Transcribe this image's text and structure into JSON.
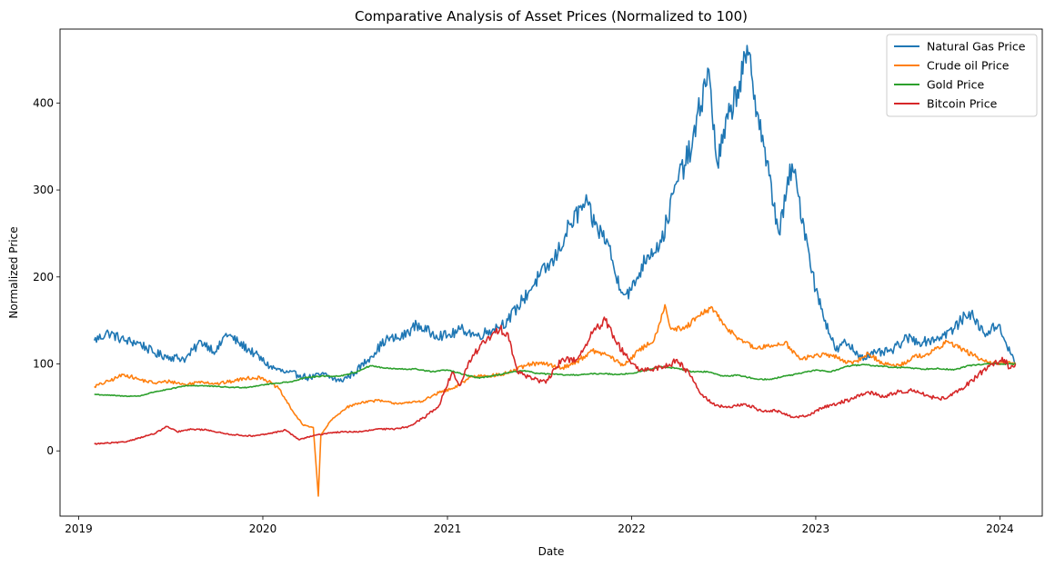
{
  "chart_data": {
    "type": "line",
    "title": "Comparative Analysis of Asset Prices (Normalized to 100)",
    "xlabel": "Date",
    "ylabel": "Normalized Price",
    "x_type": "date",
    "xlim": [
      "2018-11-25",
      "2024-03-25"
    ],
    "ylim": [
      -75,
      485
    ],
    "x_ticks": [
      {
        "label": "2019",
        "date": "2019-01-01"
      },
      {
        "label": "2020",
        "date": "2020-01-01"
      },
      {
        "label": "2021",
        "date": "2021-01-01"
      },
      {
        "label": "2022",
        "date": "2022-01-01"
      },
      {
        "label": "2023",
        "date": "2023-01-01"
      },
      {
        "label": "2024",
        "date": "2024-01-01"
      }
    ],
    "y_ticks": [
      0,
      100,
      200,
      300,
      400
    ],
    "grid": false,
    "legend_position": "top-right",
    "series": [
      {
        "name": "Natural Gas Price",
        "color": "#1f77b4",
        "points": [
          [
            "2019-02-01",
            127
          ],
          [
            "2019-03-01",
            136
          ],
          [
            "2019-04-01",
            127
          ],
          [
            "2019-05-01",
            124
          ],
          [
            "2019-06-01",
            112
          ],
          [
            "2019-07-01",
            108
          ],
          [
            "2019-08-01",
            106
          ],
          [
            "2019-09-01",
            126
          ],
          [
            "2019-10-01",
            114
          ],
          [
            "2019-10-20",
            135
          ],
          [
            "2019-11-15",
            124
          ],
          [
            "2019-12-15",
            112
          ],
          [
            "2020-01-15",
            97
          ],
          [
            "2020-02-15",
            90
          ],
          [
            "2020-03-15",
            87
          ],
          [
            "2020-04-01",
            84
          ],
          [
            "2020-05-01",
            88
          ],
          [
            "2020-06-01",
            80
          ],
          [
            "2020-07-01",
            90
          ],
          [
            "2020-08-01",
            108
          ],
          [
            "2020-09-01",
            128
          ],
          [
            "2020-10-01",
            130
          ],
          [
            "2020-11-01",
            145
          ],
          [
            "2020-12-01",
            135
          ],
          [
            "2021-01-01",
            132
          ],
          [
            "2021-02-01",
            140
          ],
          [
            "2021-03-01",
            132
          ],
          [
            "2021-04-01",
            140
          ],
          [
            "2021-05-01",
            150
          ],
          [
            "2021-06-01",
            175
          ],
          [
            "2021-07-01",
            200
          ],
          [
            "2021-08-01",
            220
          ],
          [
            "2021-09-01",
            260
          ],
          [
            "2021-10-01",
            285
          ],
          [
            "2021-10-20",
            260
          ],
          [
            "2021-11-15",
            240
          ],
          [
            "2021-12-01",
            200
          ],
          [
            "2021-12-20",
            180
          ],
          [
            "2022-01-01",
            185
          ],
          [
            "2022-02-01",
            225
          ],
          [
            "2022-03-01",
            240
          ],
          [
            "2022-04-01",
            310
          ],
          [
            "2022-05-01",
            350
          ],
          [
            "2022-06-01",
            440
          ],
          [
            "2022-06-20",
            330
          ],
          [
            "2022-07-15",
            390
          ],
          [
            "2022-08-20",
            455
          ],
          [
            "2022-09-20",
            350
          ],
          [
            "2022-10-20",
            250
          ],
          [
            "2022-11-15",
            330
          ],
          [
            "2022-12-15",
            240
          ],
          [
            "2023-01-01",
            185
          ],
          [
            "2023-01-20",
            150
          ],
          [
            "2023-02-10",
            115
          ],
          [
            "2023-03-01",
            125
          ],
          [
            "2023-04-01",
            108
          ],
          [
            "2023-05-01",
            112
          ],
          [
            "2023-06-01",
            115
          ],
          [
            "2023-07-01",
            130
          ],
          [
            "2023-08-01",
            125
          ],
          [
            "2023-09-01",
            130
          ],
          [
            "2023-10-01",
            140
          ],
          [
            "2023-11-01",
            160
          ],
          [
            "2023-12-01",
            135
          ],
          [
            "2024-01-01",
            145
          ],
          [
            "2024-01-15",
            120
          ],
          [
            "2024-02-01",
            100
          ]
        ]
      },
      {
        "name": "Crude oil Price",
        "color": "#ff7f0e",
        "points": [
          [
            "2019-02-01",
            74
          ],
          [
            "2019-03-01",
            80
          ],
          [
            "2019-04-01",
            88
          ],
          [
            "2019-05-01",
            82
          ],
          [
            "2019-06-01",
            78
          ],
          [
            "2019-07-01",
            80
          ],
          [
            "2019-08-01",
            76
          ],
          [
            "2019-09-01",
            80
          ],
          [
            "2019-10-01",
            77
          ],
          [
            "2019-11-01",
            80
          ],
          [
            "2019-12-01",
            84
          ],
          [
            "2020-01-01",
            84
          ],
          [
            "2020-02-01",
            72
          ],
          [
            "2020-03-01",
            45
          ],
          [
            "2020-03-20",
            30
          ],
          [
            "2020-04-10",
            27
          ],
          [
            "2020-04-20",
            -52
          ],
          [
            "2020-04-25",
            18
          ],
          [
            "2020-05-15",
            35
          ],
          [
            "2020-06-15",
            50
          ],
          [
            "2020-07-15",
            56
          ],
          [
            "2020-08-15",
            58
          ],
          [
            "2020-09-15",
            55
          ],
          [
            "2020-10-15",
            55
          ],
          [
            "2020-11-15",
            58
          ],
          [
            "2020-12-15",
            67
          ],
          [
            "2021-01-15",
            72
          ],
          [
            "2021-02-15",
            85
          ],
          [
            "2021-03-15",
            87
          ],
          [
            "2021-04-15",
            87
          ],
          [
            "2021-05-15",
            93
          ],
          [
            "2021-06-15",
            100
          ],
          [
            "2021-07-15",
            100
          ],
          [
            "2021-08-15",
            95
          ],
          [
            "2021-09-15",
            103
          ],
          [
            "2021-10-15",
            115
          ],
          [
            "2021-11-15",
            110
          ],
          [
            "2021-12-15",
            98
          ],
          [
            "2022-01-15",
            115
          ],
          [
            "2022-02-15",
            128
          ],
          [
            "2022-03-08",
            168
          ],
          [
            "2022-03-20",
            140
          ],
          [
            "2022-04-15",
            140
          ],
          [
            "2022-05-15",
            155
          ],
          [
            "2022-06-10",
            165
          ],
          [
            "2022-07-01",
            145
          ],
          [
            "2022-08-01",
            130
          ],
          [
            "2022-09-01",
            118
          ],
          [
            "2022-10-01",
            120
          ],
          [
            "2022-11-01",
            125
          ],
          [
            "2022-12-01",
            105
          ],
          [
            "2023-01-01",
            110
          ],
          [
            "2023-02-01",
            110
          ],
          [
            "2023-03-15",
            100
          ],
          [
            "2023-04-15",
            112
          ],
          [
            "2023-05-15",
            100
          ],
          [
            "2023-06-15",
            98
          ],
          [
            "2023-07-15",
            108
          ],
          [
            "2023-08-15",
            112
          ],
          [
            "2023-09-20",
            126
          ],
          [
            "2023-10-15",
            118
          ],
          [
            "2023-11-15",
            108
          ],
          [
            "2023-12-15",
            100
          ],
          [
            "2024-01-15",
            102
          ],
          [
            "2024-02-01",
            100
          ]
        ]
      },
      {
        "name": "Gold Price",
        "color": "#2ca02c",
        "points": [
          [
            "2019-02-01",
            65
          ],
          [
            "2019-03-01",
            64
          ],
          [
            "2019-04-01",
            63
          ],
          [
            "2019-05-01",
            63
          ],
          [
            "2019-06-01",
            68
          ],
          [
            "2019-07-01",
            71
          ],
          [
            "2019-08-01",
            75
          ],
          [
            "2019-09-01",
            75
          ],
          [
            "2019-10-01",
            74
          ],
          [
            "2019-11-01",
            73
          ],
          [
            "2019-12-01",
            73
          ],
          [
            "2020-01-01",
            76
          ],
          [
            "2020-02-01",
            78
          ],
          [
            "2020-03-01",
            80
          ],
          [
            "2020-04-01",
            85
          ],
          [
            "2020-05-01",
            86
          ],
          [
            "2020-06-01",
            86
          ],
          [
            "2020-07-01",
            90
          ],
          [
            "2020-08-01",
            98
          ],
          [
            "2020-09-01",
            95
          ],
          [
            "2020-10-01",
            94
          ],
          [
            "2020-11-01",
            94
          ],
          [
            "2020-12-01",
            91
          ],
          [
            "2021-01-01",
            93
          ],
          [
            "2021-02-01",
            88
          ],
          [
            "2021-03-01",
            84
          ],
          [
            "2021-04-01",
            86
          ],
          [
            "2021-05-01",
            90
          ],
          [
            "2021-06-01",
            92
          ],
          [
            "2021-07-01",
            89
          ],
          [
            "2021-08-01",
            88
          ],
          [
            "2021-09-01",
            87
          ],
          [
            "2021-10-01",
            88
          ],
          [
            "2021-11-01",
            89
          ],
          [
            "2021-12-01",
            88
          ],
          [
            "2022-01-01",
            89
          ],
          [
            "2022-02-01",
            93
          ],
          [
            "2022-03-01",
            97
          ],
          [
            "2022-04-01",
            95
          ],
          [
            "2022-05-01",
            91
          ],
          [
            "2022-06-01",
            91
          ],
          [
            "2022-07-01",
            86
          ],
          [
            "2022-08-01",
            87
          ],
          [
            "2022-09-01",
            83
          ],
          [
            "2022-10-01",
            82
          ],
          [
            "2022-11-01",
            86
          ],
          [
            "2022-12-01",
            89
          ],
          [
            "2023-01-01",
            93
          ],
          [
            "2023-02-01",
            91
          ],
          [
            "2023-03-01",
            97
          ],
          [
            "2023-04-01",
            99
          ],
          [
            "2023-05-01",
            98
          ],
          [
            "2023-06-01",
            96
          ],
          [
            "2023-07-01",
            96
          ],
          [
            "2023-08-01",
            94
          ],
          [
            "2023-09-01",
            95
          ],
          [
            "2023-10-01",
            93
          ],
          [
            "2023-11-01",
            98
          ],
          [
            "2023-12-01",
            100
          ],
          [
            "2024-01-01",
            100
          ],
          [
            "2024-02-01",
            100
          ]
        ]
      },
      {
        "name": "Bitcoin Price",
        "color": "#d62728",
        "points": [
          [
            "2019-02-01",
            8
          ],
          [
            "2019-03-01",
            9
          ],
          [
            "2019-04-01",
            10
          ],
          [
            "2019-05-01",
            15
          ],
          [
            "2019-06-01",
            20
          ],
          [
            "2019-06-25",
            28
          ],
          [
            "2019-07-15",
            22
          ],
          [
            "2019-08-15",
            25
          ],
          [
            "2019-09-15",
            24
          ],
          [
            "2019-10-15",
            20
          ],
          [
            "2019-11-15",
            18
          ],
          [
            "2019-12-15",
            17
          ],
          [
            "2020-01-15",
            20
          ],
          [
            "2020-02-15",
            24
          ],
          [
            "2020-03-12",
            13
          ],
          [
            "2020-04-15",
            18
          ],
          [
            "2020-05-15",
            21
          ],
          [
            "2020-06-15",
            22
          ],
          [
            "2020-07-15",
            22
          ],
          [
            "2020-08-15",
            25
          ],
          [
            "2020-09-15",
            25
          ],
          [
            "2020-10-15",
            28
          ],
          [
            "2020-11-15",
            38
          ],
          [
            "2020-12-15",
            52
          ],
          [
            "2021-01-10",
            90
          ],
          [
            "2021-01-25",
            75
          ],
          [
            "2021-02-20",
            110
          ],
          [
            "2021-03-15",
            125
          ],
          [
            "2021-04-15",
            140
          ],
          [
            "2021-05-01",
            135
          ],
          [
            "2021-05-20",
            90
          ],
          [
            "2021-06-15",
            85
          ],
          [
            "2021-07-15",
            78
          ],
          [
            "2021-08-15",
            105
          ],
          [
            "2021-09-15",
            105
          ],
          [
            "2021-10-15",
            135
          ],
          [
            "2021-11-10",
            150
          ],
          [
            "2021-12-01",
            125
          ],
          [
            "2021-12-20",
            110
          ],
          [
            "2022-01-15",
            92
          ],
          [
            "2022-02-15",
            95
          ],
          [
            "2022-03-15",
            98
          ],
          [
            "2022-04-01",
            105
          ],
          [
            "2022-05-01",
            85
          ],
          [
            "2022-05-15",
            68
          ],
          [
            "2022-06-15",
            52
          ],
          [
            "2022-07-15",
            50
          ],
          [
            "2022-08-15",
            54
          ],
          [
            "2022-09-15",
            46
          ],
          [
            "2022-10-15",
            46
          ],
          [
            "2022-11-15",
            39
          ],
          [
            "2022-12-15",
            40
          ],
          [
            "2023-01-15",
            50
          ],
          [
            "2023-02-15",
            55
          ],
          [
            "2023-03-15",
            60
          ],
          [
            "2023-04-15",
            68
          ],
          [
            "2023-05-15",
            62
          ],
          [
            "2023-06-15",
            68
          ],
          [
            "2023-07-15",
            70
          ],
          [
            "2023-08-15",
            62
          ],
          [
            "2023-09-15",
            60
          ],
          [
            "2023-10-15",
            70
          ],
          [
            "2023-11-15",
            85
          ],
          [
            "2023-12-15",
            100
          ],
          [
            "2024-01-10",
            105
          ],
          [
            "2024-01-20",
            95
          ],
          [
            "2024-02-01",
            100
          ]
        ]
      }
    ]
  }
}
